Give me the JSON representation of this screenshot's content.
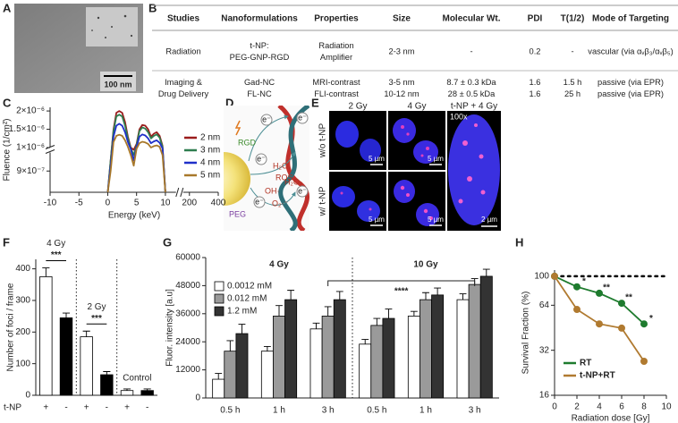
{
  "panel_labels": [
    "A",
    "B",
    "C",
    "D",
    "E",
    "F",
    "G",
    "H"
  ],
  "panel_a": {
    "scale_bar": "100 nm"
  },
  "table": {
    "header": [
      "Studies",
      "Nanoformulations",
      "Properties",
      "Size",
      "Molecular Wt.",
      "PDI",
      "T(1/2)",
      "Mode of Targeting"
    ],
    "rows": [
      [
        [
          "Radiation"
        ],
        [
          "t-NP:",
          "PEG-GNP-RGD"
        ],
        [
          "Radiation",
          "Amplifier"
        ],
        [
          "2-3 nm"
        ],
        [
          "-"
        ],
        [
          "0.2"
        ],
        [
          "-"
        ],
        [
          "vascular (via αᵥβ₃/αᵥβ₅)"
        ]
      ],
      [
        [
          "Imaging &",
          "Drug Delivery"
        ],
        [
          "Gad-NC",
          "FL-NC"
        ],
        [
          "MRI-contrast",
          "FLI-contrast"
        ],
        [
          "3-5 nm",
          "10-12 nm"
        ],
        [
          "8.7 ± 0.3 kDa",
          "28 ± 0.5 kDa"
        ],
        [
          "1.6",
          "1.6"
        ],
        [
          "1.5 h",
          "25 h"
        ],
        [
          "passive (via EPR)",
          "passive (via EPR)"
        ]
      ]
    ]
  },
  "diagram": {
    "rgd": "RGD",
    "peg": "PEG",
    "electrons": [
      "e⁻",
      "e⁻",
      "e⁻",
      "e⁻",
      "e⁻"
    ],
    "water": "H₂O",
    "ros": "ROS",
    "hydroxyl": "OH·",
    "superoxide": "O₂·⁻",
    "peroxide": "H₂O₂"
  },
  "images_e": {
    "columns": [
      "2 Gy",
      "4 Gy",
      "t-NP + 4 Gy"
    ],
    "rows": [
      "w/o t-NP",
      "w/ t-NP"
    ],
    "magnification": "100x",
    "scale_bars": [
      "5 µm",
      "5 µm",
      "5 µm",
      "5 µm",
      "2 µm"
    ]
  },
  "chart_data": [
    {
      "type": "line",
      "y_label": "Fluence (1/cm²)",
      "x_label": "Energy (keV)",
      "x": [
        0,
        0.5,
        1,
        1.5,
        2,
        2.5,
        3,
        3.5,
        4,
        4.5,
        5,
        5.5,
        6,
        6.5,
        7,
        7.5,
        8,
        8.5,
        9,
        9.5,
        10
      ],
      "series": [
        {
          "name": "2 nm",
          "color": "#9b1c1c",
          "values": [
            8.6e-07,
            9.2e-07,
            1.5e-06,
            1.95e-06,
            2e-06,
            1.95e-06,
            1.7e-06,
            1.3e-06,
            1e-06,
            9.4e-07,
            1.1e-06,
            1.5e-06,
            1.62e-06,
            1.6e-06,
            1.5e-06,
            1.3e-06,
            1.38e-06,
            1.42e-06,
            1.32e-06,
            1.05e-06,
            8.6e-07
          ]
        },
        {
          "name": "3 nm",
          "color": "#2e7d4f",
          "values": [
            8.6e-07,
            9.2e-07,
            1.45e-06,
            1.85e-06,
            1.9e-06,
            1.85e-06,
            1.6e-06,
            1.25e-06,
            9.8e-07,
            9.3e-07,
            1.07e-06,
            1.45e-06,
            1.55e-06,
            1.52e-06,
            1.42e-06,
            1.25e-06,
            1.32e-06,
            1.36e-06,
            1.27e-06,
            1.02e-06,
            8.6e-07
          ]
        },
        {
          "name": "4 nm",
          "color": "#1f2fc9",
          "values": [
            8.6e-07,
            9.1e-07,
            1.3e-06,
            1.6e-06,
            1.65e-06,
            1.6e-06,
            1.42e-06,
            1.15e-06,
            9.6e-07,
            9.2e-07,
            1.02e-06,
            1.3e-06,
            1.36e-06,
            1.33e-06,
            1.25e-06,
            1.12e-06,
            1.17e-06,
            1.2e-06,
            1.13e-06,
            9.8e-07,
            8.6e-07
          ]
        },
        {
          "name": "5 nm",
          "color": "#a8782a",
          "values": [
            8.6e-07,
            9e-07,
            1.15e-06,
            1.32e-06,
            1.35e-06,
            1.32e-06,
            1.2e-06,
            1.02e-06,
            9.3e-07,
            9.1e-07,
            9.7e-07,
            1.12e-06,
            1.16e-06,
            1.14e-06,
            1.1e-06,
            1e-06,
            1.04e-06,
            1.06e-06,
            1.02e-06,
            9.3e-07,
            8.6e-07
          ]
        }
      ],
      "xlim": [
        -10,
        400
      ],
      "xbreak": [
        11,
        190
      ],
      "xticks": [
        -10,
        -5,
        0,
        5,
        10,
        200,
        400
      ],
      "ylim": [
        8.6e-07,
        2.1e-06
      ],
      "ybreak": 9.4e-07,
      "yticks": [
        {
          "value": 9e-07,
          "label": "9×10⁻⁷"
        },
        {
          "value": 1e-06,
          "label": "1×10⁻⁶"
        },
        {
          "value": 1.5e-06,
          "label": "1.5×10⁻⁶"
        },
        {
          "value": 2e-06,
          "label": "2×10⁻⁶"
        }
      ]
    },
    {
      "type": "bar",
      "y_label": "Number of foci / frame",
      "x_label": "t-NP",
      "categories": [
        "+",
        "-",
        "+",
        "-",
        "+",
        "-"
      ],
      "values": [
        375,
        245,
        185,
        65,
        15,
        15
      ],
      "errors": [
        28,
        15,
        18,
        10,
        5,
        5
      ],
      "colors": [
        "#ffffff",
        "#000000",
        "#ffffff",
        "#000000",
        "#ffffff",
        "#000000"
      ],
      "groups": [
        {
          "label": "4 Gy",
          "sig": "***"
        },
        {
          "label": "2 Gy",
          "sig": "***"
        },
        {
          "label": "Control"
        }
      ],
      "ylim": [
        0,
        430
      ],
      "yticks": [
        0,
        100,
        200,
        300,
        400
      ]
    },
    {
      "type": "bar",
      "y_label": "Fluor. intensity [a.u]",
      "categories": [
        "0.5 h",
        "1 h",
        "3 h",
        "0.5 h",
        "1 h",
        "3 h"
      ],
      "groups": [
        {
          "label": "4 Gy"
        },
        {
          "label": "10 Gy"
        }
      ],
      "sig": "****",
      "series": [
        {
          "name": "0.0012 mM",
          "color": "#ffffff",
          "values": [
            8000,
            20000,
            29500,
            23000,
            35000,
            42000
          ],
          "errors": [
            2500,
            2000,
            2500,
            2000,
            2000,
            2500
          ]
        },
        {
          "name": "0.012 mM",
          "color": "#9a9a9a",
          "values": [
            20000,
            35000,
            35000,
            31000,
            42000,
            48500
          ],
          "errors": [
            4500,
            4500,
            4000,
            3000,
            3000,
            2500
          ]
        },
        {
          "name": "1.2 mM",
          "color": "#333333",
          "values": [
            27500,
            42000,
            42000,
            34000,
            44000,
            52000
          ],
          "errors": [
            4000,
            4000,
            3500,
            4000,
            3000,
            3000
          ]
        }
      ],
      "ylim": [
        0,
        60000
      ],
      "yticks": [
        0,
        12000,
        24000,
        36000,
        48000,
        60000
      ]
    },
    {
      "type": "scatter",
      "y_label": "Survival Fraction (%)",
      "x_label": "Radiation dose [Gy]",
      "x": [
        0,
        2,
        4,
        6,
        8
      ],
      "series": [
        {
          "name": "RT",
          "color": "#1e7b2e",
          "values": [
            100,
            85,
            77,
            66,
            48
          ],
          "sig_labels": [
            null,
            "*",
            "**",
            "**",
            "*"
          ]
        },
        {
          "name": "t-NP+RT",
          "color": "#b07a30",
          "values": [
            100,
            60,
            48,
            45,
            27
          ]
        }
      ],
      "log_y": true,
      "xlim": [
        0,
        10
      ],
      "xticks": [
        0,
        2,
        4,
        6,
        8,
        10
      ],
      "ylim": [
        16,
        110
      ],
      "yticks": [
        16,
        32,
        64,
        100
      ],
      "reference_line": 100
    }
  ]
}
